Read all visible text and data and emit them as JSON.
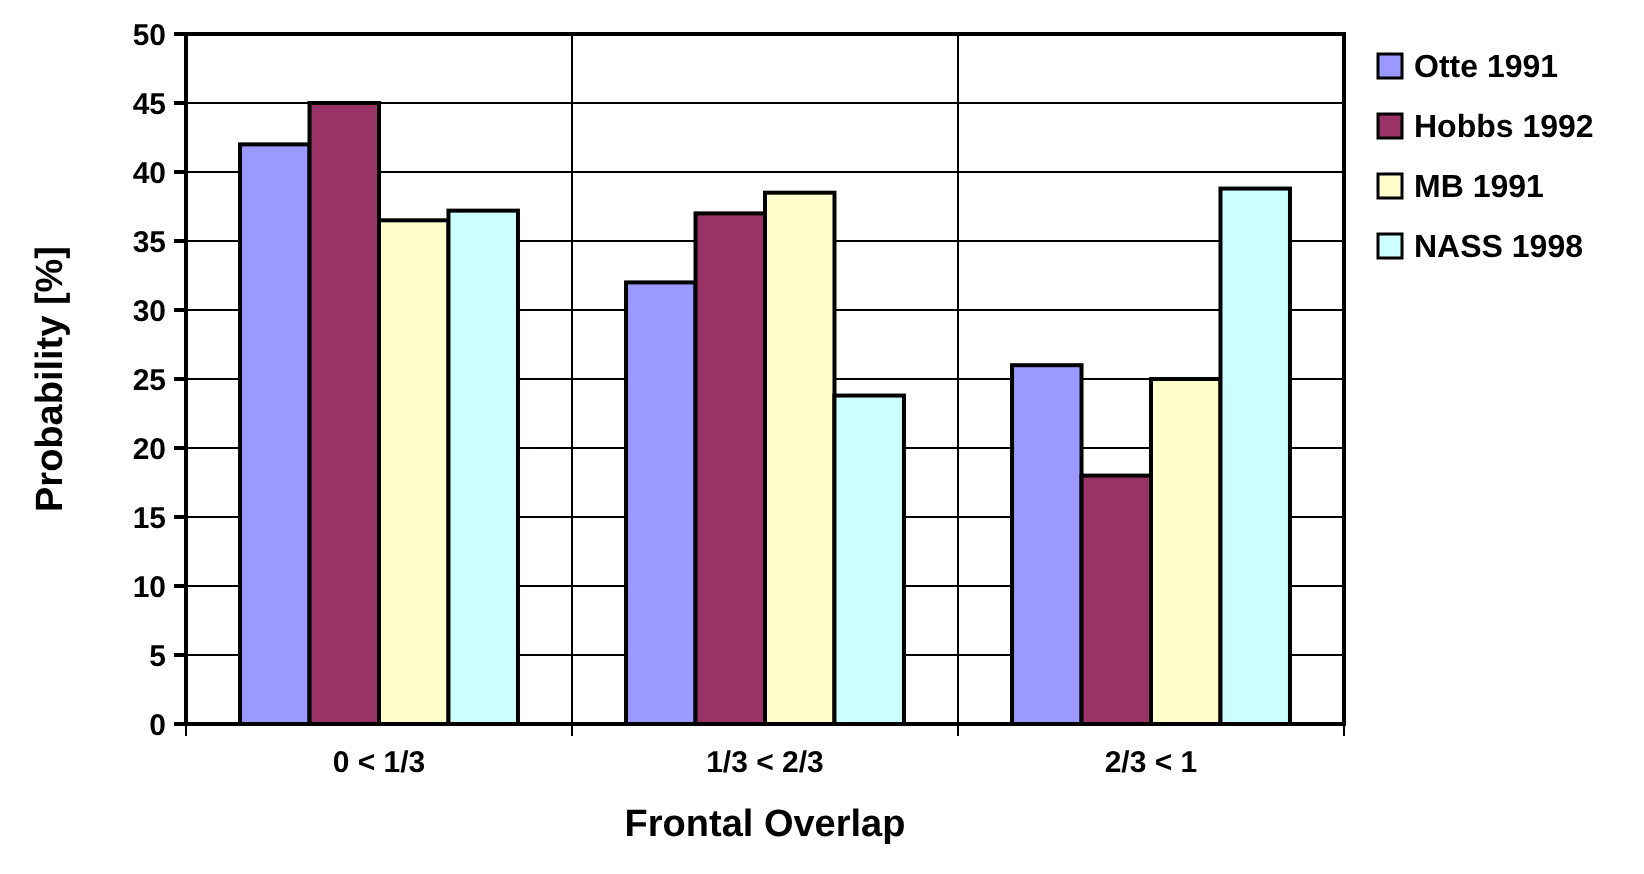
{
  "chart_data": {
    "type": "bar",
    "xlabel": "Frontal Overlap",
    "ylabel": "Probability [%]",
    "categories": [
      "0 < 1/3",
      "1/3 < 2/3",
      "2/3 < 1"
    ],
    "series": [
      {
        "name": "Otte 1991",
        "color": "#9999ff",
        "values": [
          42,
          32,
          26
        ]
      },
      {
        "name": "Hobbs 1992",
        "color": "#993366",
        "values": [
          45,
          37,
          18
        ]
      },
      {
        "name": "MB 1991",
        "color": "#ffffcc",
        "values": [
          36.5,
          38.5,
          25
        ]
      },
      {
        "name": "NASS 1998",
        "color": "#ccffff",
        "values": [
          37.2,
          23.8,
          38.8
        ]
      }
    ],
    "ylim": [
      0,
      50
    ],
    "yticks": [
      0,
      5,
      10,
      15,
      20,
      25,
      30,
      35,
      40,
      45,
      50
    ],
    "grid": true,
    "legend": "top right"
  }
}
